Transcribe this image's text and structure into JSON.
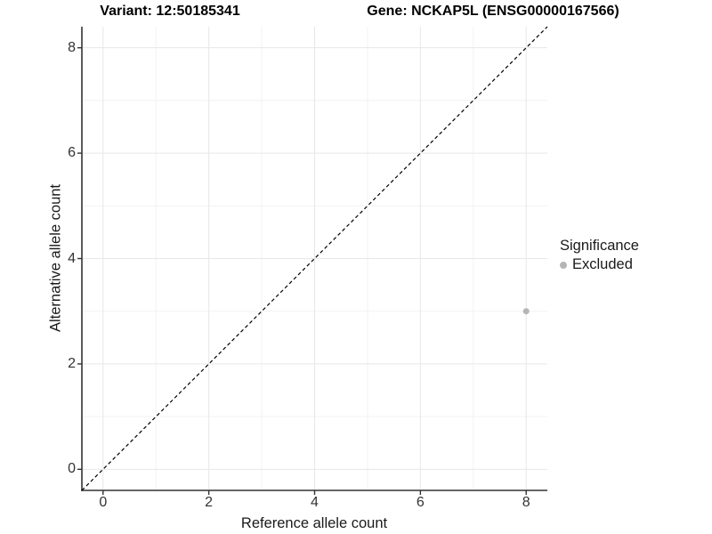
{
  "titles": {
    "variant": "Variant: 12:50185341",
    "gene": "Gene: NCKAP5L (ENSG00000167566)"
  },
  "legend": {
    "title": "Significance",
    "items": [
      {
        "label": "Excluded",
        "color": "#b5b5b5"
      }
    ]
  },
  "chart_data": {
    "type": "scatter",
    "title_left": "Variant: 12:50185341",
    "title_right": "Gene: NCKAP5L (ENSG00000167566)",
    "xlabel": "Reference allele count",
    "ylabel": "Alternative allele count",
    "xlim": [
      -0.4,
      8.4
    ],
    "ylim": [
      -0.4,
      8.4
    ],
    "x_major_ticks": [
      0,
      2,
      4,
      6,
      8
    ],
    "y_major_ticks": [
      0,
      2,
      4,
      6,
      8
    ],
    "x_minor_ticks": [
      1,
      3,
      5,
      7
    ],
    "y_minor_ticks": [
      1,
      3,
      5,
      7
    ],
    "grid": true,
    "legend_position": "right",
    "series": [
      {
        "name": "Excluded",
        "color": "#b5b5b5",
        "points": [
          {
            "x": 8,
            "y": 3
          }
        ]
      }
    ],
    "reference_line": {
      "type": "identity",
      "from": [
        -0.4,
        -0.4
      ],
      "to": [
        8.4,
        8.4
      ],
      "style": "dashed",
      "color": "#000000"
    },
    "colors": {
      "grid_major": "#e7e7e7",
      "grid_minor": "#f2f2f2",
      "axis_line": "#333333",
      "tick_text": "#333333",
      "point": "#b5b5b5"
    }
  }
}
